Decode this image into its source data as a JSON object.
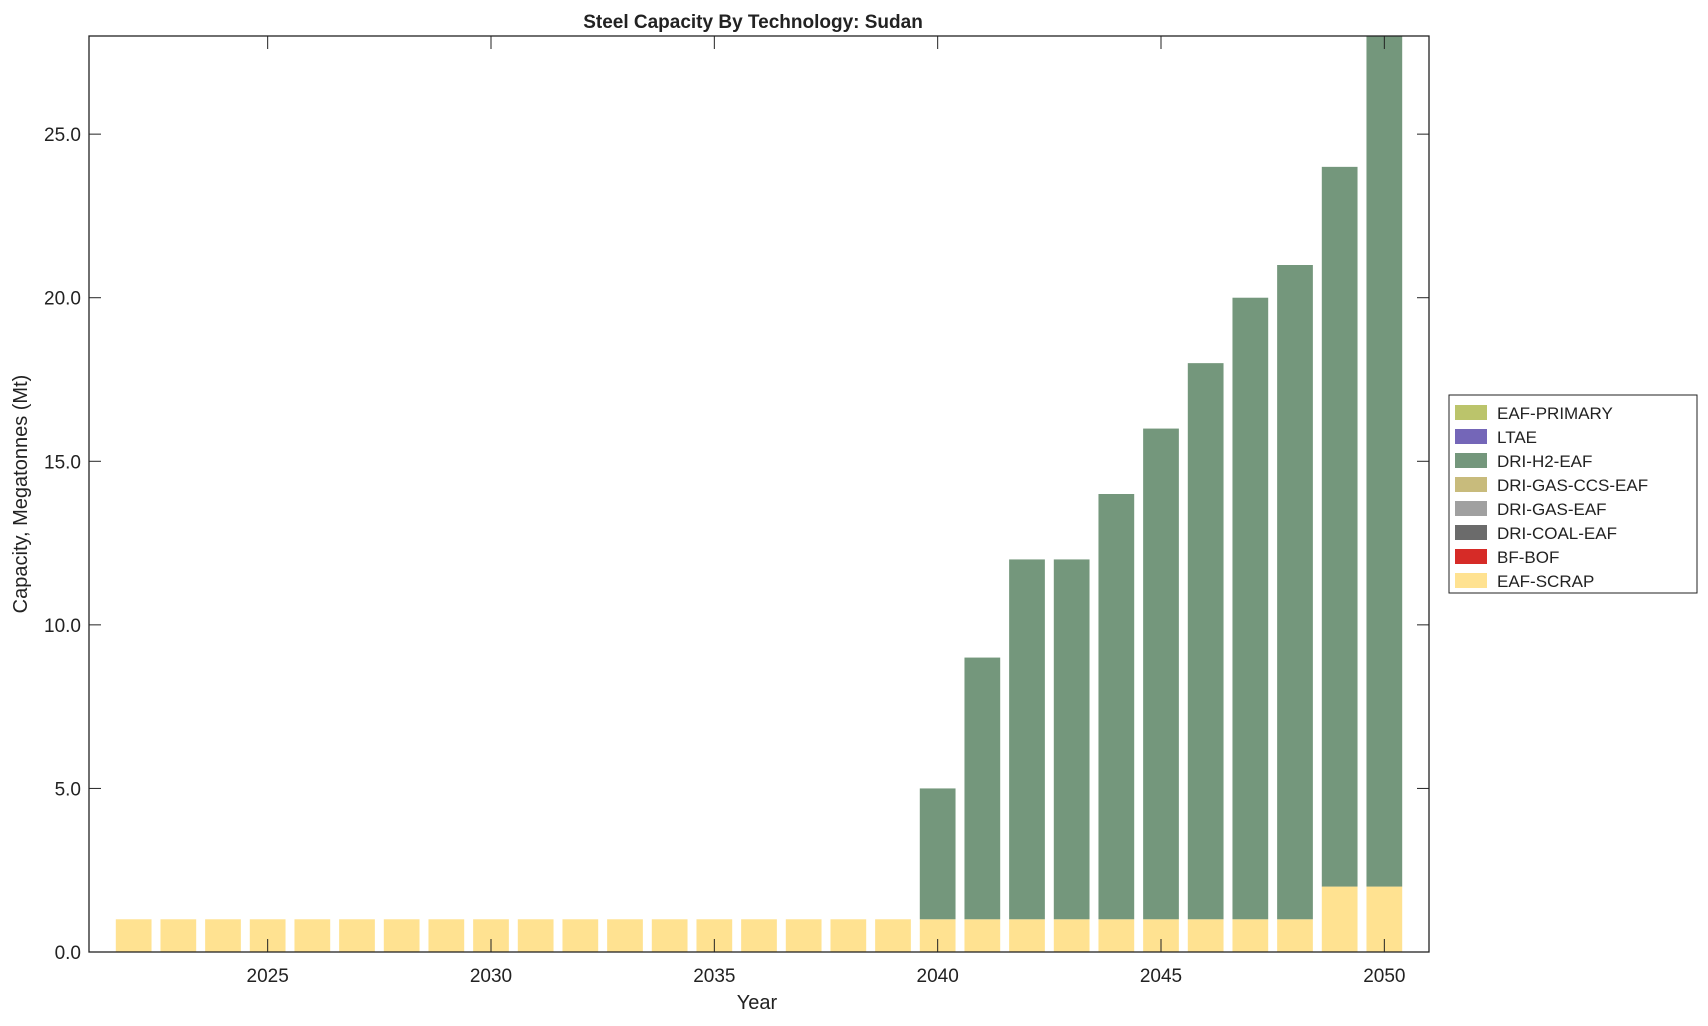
{
  "chart_data": {
    "type": "bar",
    "stacked": true,
    "title": "Steel Capacity By Technology: Sudan",
    "xlabel": "Year",
    "ylabel": "Capacity, Megatonnes (Mt)",
    "ylim": [
      0,
      28
    ],
    "xlim": [
      2021,
      2051
    ],
    "yticks": [
      "0.0",
      "5.0",
      "10.0",
      "15.0",
      "20.0",
      "25.0"
    ],
    "ytick_values": [
      0,
      5,
      10,
      15,
      20,
      25
    ],
    "xticks": [
      "2025",
      "2030",
      "2035",
      "2040",
      "2045",
      "2050"
    ],
    "xtick_values": [
      2025,
      2030,
      2035,
      2040,
      2045,
      2050
    ],
    "legend_position": "right",
    "categories": [
      2022,
      2023,
      2024,
      2025,
      2026,
      2027,
      2028,
      2029,
      2030,
      2031,
      2032,
      2033,
      2034,
      2035,
      2036,
      2037,
      2038,
      2039,
      2040,
      2041,
      2042,
      2043,
      2044,
      2045,
      2046,
      2047,
      2048,
      2049,
      2050
    ],
    "series": [
      {
        "name": "EAF-SCRAP",
        "color": "#ffe291",
        "values": [
          1,
          1,
          1,
          1,
          1,
          1,
          1,
          1,
          1,
          1,
          1,
          1,
          1,
          1,
          1,
          1,
          1,
          1,
          1,
          1,
          1,
          1,
          1,
          1,
          1,
          1,
          1,
          2,
          2
        ]
      },
      {
        "name": "BF-BOF",
        "color": "#d62b27",
        "values": [
          0,
          0,
          0,
          0,
          0,
          0,
          0,
          0,
          0,
          0,
          0,
          0,
          0,
          0,
          0,
          0,
          0,
          0,
          0,
          0,
          0,
          0,
          0,
          0,
          0,
          0,
          0,
          0,
          0
        ]
      },
      {
        "name": "DRI-COAL-EAF",
        "color": "#6b6b6b",
        "values": [
          0,
          0,
          0,
          0,
          0,
          0,
          0,
          0,
          0,
          0,
          0,
          0,
          0,
          0,
          0,
          0,
          0,
          0,
          0,
          0,
          0,
          0,
          0,
          0,
          0,
          0,
          0,
          0,
          0
        ]
      },
      {
        "name": "DRI-GAS-EAF",
        "color": "#a0a0a0",
        "values": [
          0,
          0,
          0,
          0,
          0,
          0,
          0,
          0,
          0,
          0,
          0,
          0,
          0,
          0,
          0,
          0,
          0,
          0,
          0,
          0,
          0,
          0,
          0,
          0,
          0,
          0,
          0,
          0,
          0
        ]
      },
      {
        "name": "DRI-GAS-CCS-EAF",
        "color": "#c8bb7c",
        "values": [
          0,
          0,
          0,
          0,
          0,
          0,
          0,
          0,
          0,
          0,
          0,
          0,
          0,
          0,
          0,
          0,
          0,
          0,
          0,
          0,
          0,
          0,
          0,
          0,
          0,
          0,
          0,
          0,
          0
        ]
      },
      {
        "name": "DRI-H2-EAF",
        "color": "#74977c",
        "values": [
          0,
          0,
          0,
          0,
          0,
          0,
          0,
          0,
          0,
          0,
          0,
          0,
          0,
          0,
          0,
          0,
          0,
          0,
          4,
          8,
          11,
          11,
          13,
          15,
          17,
          19,
          20,
          22,
          26
        ]
      },
      {
        "name": "LTAE",
        "color": "#7466b8",
        "values": [
          0,
          0,
          0,
          0,
          0,
          0,
          0,
          0,
          0,
          0,
          0,
          0,
          0,
          0,
          0,
          0,
          0,
          0,
          0,
          0,
          0,
          0,
          0,
          0,
          0,
          0,
          0,
          0,
          0
        ]
      },
      {
        "name": "EAF-PRIMARY",
        "color": "#bbc46b",
        "values": [
          0,
          0,
          0,
          0,
          0,
          0,
          0,
          0,
          0,
          0,
          0,
          0,
          0,
          0,
          0,
          0,
          0,
          0,
          0,
          0,
          0,
          0,
          0,
          0,
          0,
          0,
          0,
          0,
          0
        ]
      }
    ],
    "legend_order": [
      "EAF-PRIMARY",
      "LTAE",
      "DRI-H2-EAF",
      "DRI-GAS-CCS-EAF",
      "DRI-GAS-EAF",
      "DRI-COAL-EAF",
      "BF-BOF",
      "EAF-SCRAP"
    ]
  }
}
